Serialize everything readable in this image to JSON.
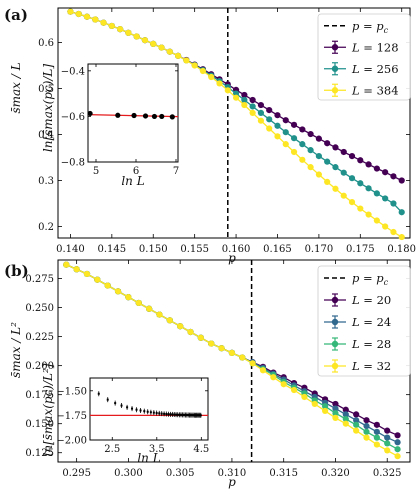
{
  "chart_data": [
    {
      "panel_label": "(a)",
      "type": "line",
      "xlabel": "p",
      "ylabel": "s̄max / L",
      "xlim": [
        0.1385,
        0.181
      ],
      "ylim": [
        0.175,
        0.675
      ],
      "xticks": [
        0.14,
        0.145,
        0.15,
        0.155,
        0.16,
        0.165,
        0.17,
        0.175,
        0.18
      ],
      "xtick_labels": [
        "0.140",
        "0.145",
        "0.150",
        "0.155",
        "0.160",
        "0.165",
        "0.170",
        "0.175",
        "0.180"
      ],
      "yticks": [
        0.2,
        0.3,
        0.4,
        0.5,
        0.6
      ],
      "ytick_labels": [
        "0.2",
        "0.3",
        "0.4",
        "0.5",
        "0.6"
      ],
      "critical_point": 0.159,
      "legend": {
        "position": "top-right",
        "critical_label": "p = p",
        "critical_label_sub": "c",
        "label_prefix": "L = "
      },
      "series": [
        {
          "name": "128",
          "color": "#440154",
          "x": [
            0.14,
            0.141,
            0.142,
            0.143,
            0.144,
            0.145,
            0.146,
            0.147,
            0.148,
            0.149,
            0.15,
            0.151,
            0.152,
            0.153,
            0.154,
            0.155,
            0.156,
            0.157,
            0.158,
            0.159,
            0.16,
            0.161,
            0.162,
            0.163,
            0.164,
            0.165,
            0.166,
            0.167,
            0.168,
            0.169,
            0.17,
            0.171,
            0.172,
            0.173,
            0.174,
            0.175,
            0.176,
            0.177,
            0.178,
            0.179,
            0.18
          ],
          "y": [
            0.667,
            0.662,
            0.656,
            0.65,
            0.643,
            0.636,
            0.629,
            0.621,
            0.613,
            0.605,
            0.597,
            0.589,
            0.58,
            0.571,
            0.562,
            0.552,
            0.542,
            0.531,
            0.52,
            0.509,
            0.497,
            0.486,
            0.475,
            0.464,
            0.453,
            0.442,
            0.431,
            0.421,
            0.411,
            0.401,
            0.391,
            0.381,
            0.372,
            0.362,
            0.353,
            0.344,
            0.335,
            0.326,
            0.318,
            0.309,
            0.3
          ]
        },
        {
          "name": "256",
          "color": "#21918c",
          "x": [
            0.14,
            0.141,
            0.142,
            0.143,
            0.144,
            0.145,
            0.146,
            0.147,
            0.148,
            0.149,
            0.15,
            0.151,
            0.152,
            0.153,
            0.154,
            0.155,
            0.156,
            0.157,
            0.158,
            0.159,
            0.16,
            0.161,
            0.162,
            0.163,
            0.164,
            0.165,
            0.166,
            0.167,
            0.168,
            0.169,
            0.17,
            0.171,
            0.172,
            0.173,
            0.174,
            0.175,
            0.176,
            0.177,
            0.178,
            0.179,
            0.18
          ],
          "y": [
            0.667,
            0.662,
            0.656,
            0.65,
            0.643,
            0.636,
            0.629,
            0.621,
            0.613,
            0.605,
            0.597,
            0.589,
            0.58,
            0.571,
            0.561,
            0.551,
            0.54,
            0.528,
            0.516,
            0.503,
            0.489,
            0.475,
            0.461,
            0.447,
            0.433,
            0.419,
            0.405,
            0.392,
            0.379,
            0.366,
            0.353,
            0.341,
            0.329,
            0.317,
            0.305,
            0.294,
            0.283,
            0.272,
            0.261,
            0.25,
            0.231
          ]
        },
        {
          "name": "384",
          "color": "#fde725",
          "x": [
            0.14,
            0.141,
            0.142,
            0.143,
            0.144,
            0.145,
            0.146,
            0.147,
            0.148,
            0.149,
            0.15,
            0.151,
            0.152,
            0.153,
            0.154,
            0.155,
            0.156,
            0.157,
            0.158,
            0.159,
            0.16,
            0.161,
            0.162,
            0.163,
            0.164,
            0.165,
            0.166,
            0.167,
            0.168,
            0.169,
            0.17,
            0.171,
            0.172,
            0.173,
            0.174,
            0.175,
            0.176,
            0.177,
            0.178,
            0.179,
            0.18
          ],
          "y": [
            0.667,
            0.662,
            0.656,
            0.65,
            0.643,
            0.636,
            0.629,
            0.621,
            0.613,
            0.605,
            0.597,
            0.589,
            0.58,
            0.571,
            0.561,
            0.55,
            0.538,
            0.525,
            0.511,
            0.496,
            0.48,
            0.464,
            0.447,
            0.43,
            0.413,
            0.396,
            0.379,
            0.362,
            0.345,
            0.329,
            0.313,
            0.297,
            0.282,
            0.267,
            0.253,
            0.239,
            0.226,
            0.213,
            0.2,
            0.188,
            0.177
          ]
        }
      ],
      "inset": {
        "type": "scatter",
        "xlabel": "ln L",
        "ylabel": "ln[s̄max(pc)/L]",
        "xlim": [
          4.8,
          7.05
        ],
        "ylim": [
          -0.8,
          -0.37
        ],
        "xticks": [
          5,
          6,
          7
        ],
        "xtick_labels": [
          "5",
          "6",
          "7"
        ],
        "yticks": [
          -0.8,
          -0.6,
          -0.4
        ],
        "ytick_labels": [
          "−0.8",
          "−0.6",
          "−0.4"
        ],
        "points": {
          "x": [
            4.852,
            5.545,
            5.951,
            6.238,
            6.461,
            6.644,
            6.908
          ],
          "y": [
            -0.587,
            -0.595,
            -0.596,
            -0.598,
            -0.6,
            -0.6,
            -0.602
          ]
        },
        "fit": {
          "color": "#e41a1c",
          "x": [
            4.8,
            7.05
          ],
          "y": [
            -0.592,
            -0.601
          ]
        }
      }
    },
    {
      "panel_label": "(b)",
      "type": "line",
      "xlabel": "p",
      "ylabel": "s̄max / L²",
      "xlim": [
        0.2932,
        0.3272
      ],
      "ylim": [
        0.117,
        0.291
      ],
      "xticks": [
        0.295,
        0.3,
        0.305,
        0.31,
        0.315,
        0.32,
        0.325
      ],
      "xtick_labels": [
        "0.295",
        "0.300",
        "0.305",
        "0.310",
        "0.315",
        "0.320",
        "0.325"
      ],
      "yticks": [
        0.125,
        0.15,
        0.175,
        0.2,
        0.225,
        0.25,
        0.275
      ],
      "ytick_labels": [
        "0.125",
        "0.150",
        "0.175",
        "0.200",
        "0.225",
        "0.250",
        "0.275"
      ],
      "critical_point": 0.3119,
      "legend": {
        "position": "top-right",
        "critical_label": "p = p",
        "critical_label_sub": "c",
        "label_prefix": "L = "
      },
      "series": [
        {
          "name": "20",
          "color": "#440154",
          "x": [
            0.294,
            0.295,
            0.296,
            0.297,
            0.298,
            0.299,
            0.3,
            0.301,
            0.302,
            0.303,
            0.304,
            0.305,
            0.306,
            0.307,
            0.308,
            0.309,
            0.31,
            0.311,
            0.312,
            0.313,
            0.314,
            0.315,
            0.316,
            0.317,
            0.318,
            0.319,
            0.32,
            0.321,
            0.322,
            0.323,
            0.324,
            0.325,
            0.326
          ],
          "y": [
            0.287,
            0.283,
            0.279,
            0.274,
            0.269,
            0.264,
            0.259,
            0.254,
            0.249,
            0.244,
            0.239,
            0.234,
            0.229,
            0.224,
            0.219,
            0.215,
            0.211,
            0.207,
            0.203,
            0.199,
            0.194,
            0.19,
            0.185,
            0.181,
            0.176,
            0.171,
            0.167,
            0.162,
            0.158,
            0.153,
            0.149,
            0.144,
            0.14
          ]
        },
        {
          "name": "24",
          "color": "#31688e",
          "x": [
            0.294,
            0.295,
            0.296,
            0.297,
            0.298,
            0.299,
            0.3,
            0.301,
            0.302,
            0.303,
            0.304,
            0.305,
            0.306,
            0.307,
            0.308,
            0.309,
            0.31,
            0.311,
            0.312,
            0.313,
            0.314,
            0.315,
            0.316,
            0.317,
            0.318,
            0.319,
            0.32,
            0.321,
            0.322,
            0.323,
            0.324,
            0.325,
            0.326
          ],
          "y": [
            0.287,
            0.283,
            0.279,
            0.274,
            0.269,
            0.264,
            0.259,
            0.254,
            0.249,
            0.244,
            0.239,
            0.234,
            0.229,
            0.224,
            0.219,
            0.215,
            0.211,
            0.207,
            0.203,
            0.198,
            0.193,
            0.188,
            0.183,
            0.178,
            0.173,
            0.168,
            0.163,
            0.158,
            0.153,
            0.148,
            0.143,
            0.138,
            0.134
          ]
        },
        {
          "name": "28",
          "color": "#35b779",
          "x": [
            0.294,
            0.295,
            0.296,
            0.297,
            0.298,
            0.299,
            0.3,
            0.301,
            0.302,
            0.303,
            0.304,
            0.305,
            0.306,
            0.307,
            0.308,
            0.309,
            0.31,
            0.311,
            0.312,
            0.313,
            0.314,
            0.315,
            0.316,
            0.317,
            0.318,
            0.319,
            0.32,
            0.321,
            0.322,
            0.323,
            0.324,
            0.325,
            0.326
          ],
          "y": [
            0.287,
            0.283,
            0.279,
            0.274,
            0.269,
            0.264,
            0.259,
            0.254,
            0.249,
            0.244,
            0.239,
            0.234,
            0.229,
            0.224,
            0.219,
            0.215,
            0.211,
            0.207,
            0.202,
            0.197,
            0.192,
            0.186,
            0.181,
            0.176,
            0.17,
            0.165,
            0.159,
            0.154,
            0.149,
            0.143,
            0.138,
            0.133,
            0.128
          ]
        },
        {
          "name": "32",
          "color": "#fde725",
          "x": [
            0.294,
            0.295,
            0.296,
            0.297,
            0.298,
            0.299,
            0.3,
            0.301,
            0.302,
            0.303,
            0.304,
            0.305,
            0.306,
            0.307,
            0.308,
            0.309,
            0.31,
            0.311,
            0.312,
            0.313,
            0.314,
            0.315,
            0.316,
            0.317,
            0.318,
            0.319,
            0.32,
            0.321,
            0.322,
            0.323,
            0.324,
            0.325,
            0.326
          ],
          "y": [
            0.287,
            0.283,
            0.279,
            0.274,
            0.269,
            0.264,
            0.259,
            0.254,
            0.249,
            0.244,
            0.239,
            0.234,
            0.229,
            0.224,
            0.219,
            0.215,
            0.211,
            0.207,
            0.202,
            0.196,
            0.19,
            0.184,
            0.179,
            0.173,
            0.167,
            0.161,
            0.155,
            0.15,
            0.144,
            0.138,
            0.132,
            0.127,
            0.122
          ]
        }
      ],
      "inset": {
        "type": "scatter",
        "xlabel": "ln L",
        "ylabel": "ln[s̄max(pc)/L²]",
        "xlim": [
          2.0,
          4.65
        ],
        "ylim": [
          -2.0,
          -1.37
        ],
        "xticks": [
          2.5,
          3.5,
          4.5
        ],
        "xtick_labels": [
          "2.5",
          "3.5",
          "4.5"
        ],
        "yticks": [
          -2.0,
          -1.75,
          -1.5
        ],
        "ytick_labels": [
          "−2.00",
          "−1.75",
          "−1.50"
        ],
        "points": {
          "x": [
            2.197,
            2.398,
            2.565,
            2.708,
            2.833,
            2.944,
            3.045,
            3.135,
            3.219,
            3.296,
            3.367,
            3.434,
            3.497,
            3.555,
            3.611,
            3.664,
            3.714,
            3.761,
            3.807,
            3.85,
            3.892,
            3.932,
            3.97,
            4.007,
            4.043,
            4.078,
            4.111,
            4.143,
            4.174,
            4.205,
            4.234,
            4.263,
            4.29,
            4.317,
            4.344,
            4.369,
            4.394,
            4.419,
            4.443,
            4.466,
            4.489
          ],
          "y": [
            -1.53,
            -1.59,
            -1.625,
            -1.65,
            -1.668,
            -1.681,
            -1.692,
            -1.7,
            -1.707,
            -1.713,
            -1.718,
            -1.722,
            -1.726,
            -1.729,
            -1.732,
            -1.734,
            -1.736,
            -1.738,
            -1.739,
            -1.74,
            -1.741,
            -1.742,
            -1.743,
            -1.744,
            -1.744,
            -1.745,
            -1.745,
            -1.746,
            -1.746,
            -1.746,
            -1.747,
            -1.747,
            -1.747,
            -1.747,
            -1.748,
            -1.748,
            -1.748,
            -1.748,
            -1.748,
            -1.748,
            -1.749
          ]
        },
        "fit": {
          "color": "#e41a1c",
          "x": [
            2.0,
            4.65
          ],
          "y": [
            -1.75,
            -1.75
          ]
        }
      }
    }
  ]
}
